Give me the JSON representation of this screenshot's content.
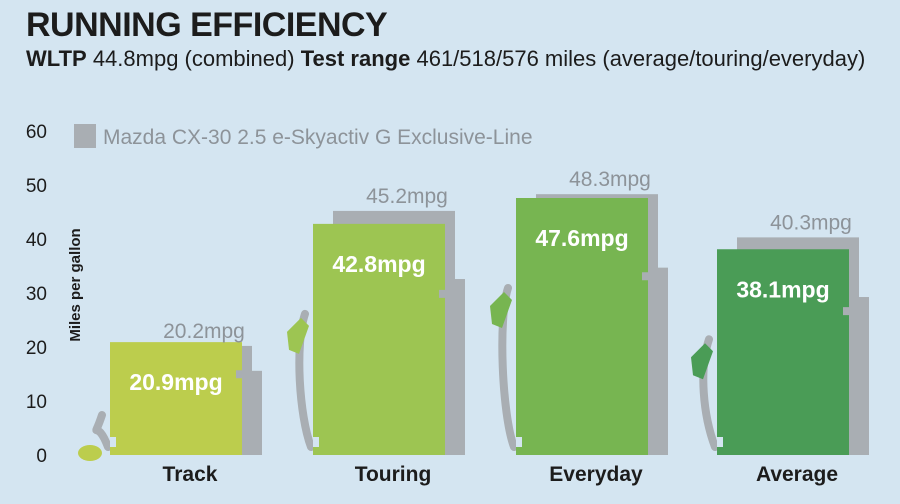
{
  "header": {
    "title": "RUNNING EFFICIENCY",
    "wltp_label": "WLTP",
    "wltp_value": "44.8mpg (combined)",
    "range_label": "Test range",
    "range_value": "461/518/576 miles (average/touring/everyday)"
  },
  "chart_data": {
    "type": "bar",
    "title": "RUNNING EFFICIENCY",
    "ylabel": "Miles per gallon",
    "xlabel": "",
    "ylim": [
      0,
      60
    ],
    "yticks": [
      0,
      10,
      20,
      30,
      40,
      50,
      60
    ],
    "categories": [
      "Track",
      "Touring",
      "Everyday",
      "Average"
    ],
    "series": [
      {
        "values": [
          20.9,
          42.8,
          47.6,
          38.1
        ],
        "labels": [
          "20.9mpg",
          "42.8mpg",
          "47.6mpg",
          "38.1mpg"
        ],
        "colors": [
          "#bccd4d",
          "#9dc552",
          "#77b551",
          "#4a9c56"
        ]
      },
      {
        "name": "Mazda CX-30 2.5 e-Skyactiv G Exclusive-Line",
        "values": [
          20.2,
          45.2,
          48.3,
          40.3
        ],
        "labels": [
          "20.2mpg",
          "45.2mpg",
          "48.3mpg",
          "40.3mpg"
        ],
        "color": "#a9aeb3"
      }
    ],
    "legend": "top-left",
    "grid": false
  }
}
